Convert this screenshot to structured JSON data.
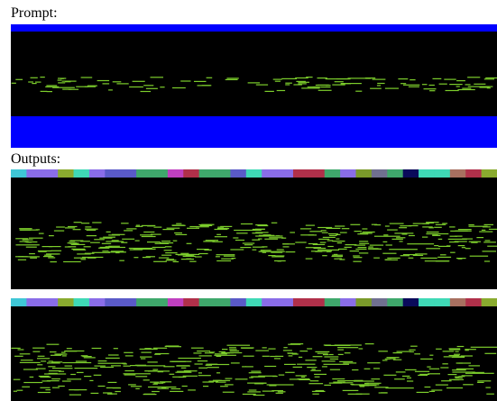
{
  "prompt": {
    "label": "Prompt:",
    "colors": {
      "band": "#0000ff",
      "roll_background": "#000000",
      "notes": "#7ccd2c"
    }
  },
  "outputs": {
    "label": "Outputs:",
    "count": 2,
    "colors": {
      "roll_background": "#000000",
      "notes": "#7ccd2c",
      "separator": "#ffffff"
    },
    "instrument_bar_colors": [
      "#3fc7d6",
      "#8a6de8",
      "#8a6de8",
      "#8aab2f",
      "#3fd9b6",
      "#8a6de8",
      "#5a5ac8",
      "#5a5ac8",
      "#3fa86c",
      "#3fa86c",
      "#c040c0",
      "#b0304a",
      "#3fa86c",
      "#3fa86c",
      "#5a5ac8",
      "#3fd9b6",
      "#8a6de8",
      "#8a6de8",
      "#b0304a",
      "#b0304a",
      "#3fa86c",
      "#8a6de8",
      "#7a9a2a",
      "#707090",
      "#3fa86c",
      "#0a0a5a",
      "#3fd9b6",
      "#3fd9b6",
      "#a87060",
      "#b0304a",
      "#8aab2f"
    ]
  }
}
